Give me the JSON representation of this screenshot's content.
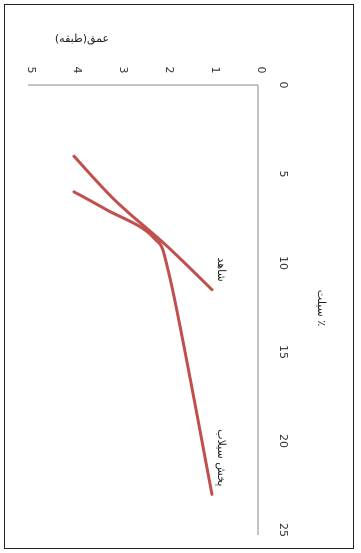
{
  "chart_data": {
    "type": "line",
    "title": "",
    "xlabel": "سیلت ٪",
    "ylabel": "عمق(طبقه)",
    "xlim": [
      0,
      25
    ],
    "ylim": [
      0,
      5
    ],
    "x_ticks": [
      "0",
      "5",
      "10",
      "15",
      "20",
      "25"
    ],
    "y_ticks": [
      "0",
      "1",
      "2",
      "3",
      "4",
      "5"
    ],
    "grid": false,
    "series_color": "#c0504d",
    "series": [
      {
        "name": "شاهد",
        "points": [
          [
            4.0,
            4.0
          ],
          [
            6.5,
            3.1
          ],
          [
            9.0,
            2.0
          ],
          [
            11.5,
            1.0
          ]
        ]
      },
      {
        "name": "پخش سیلاب",
        "points": [
          [
            6.0,
            4.0
          ],
          [
            7.0,
            3.3
          ],
          [
            8.5,
            2.3
          ],
          [
            11.0,
            1.9
          ],
          [
            23.0,
            1.0
          ]
        ]
      }
    ]
  }
}
